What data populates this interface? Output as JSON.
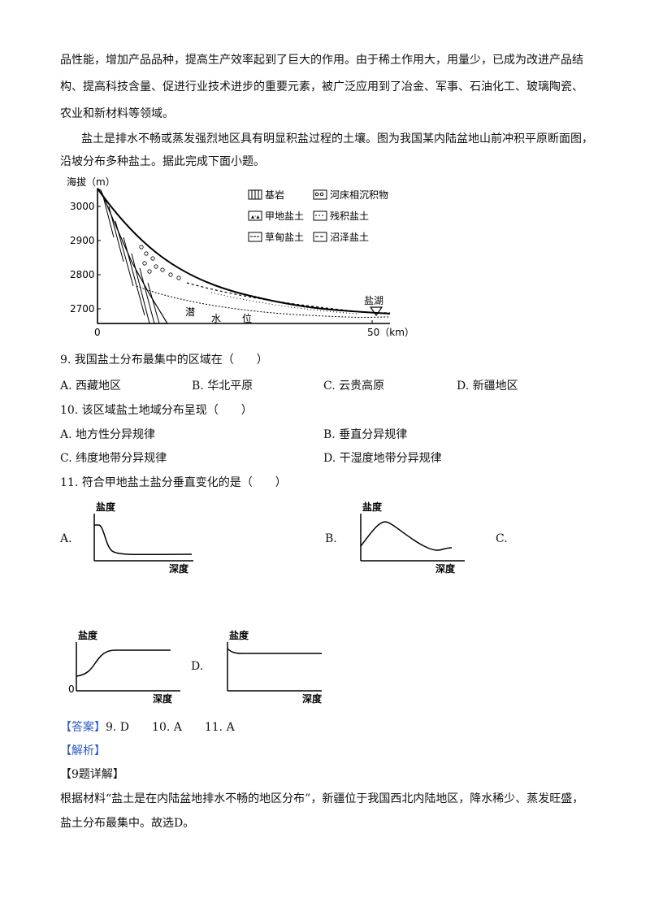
{
  "intro_lines": [
    "品性能，增加产品品种，提高生产效率起到了巨大的作用。由于稀土作用大，用量少，已成为改进产品结",
    "构、提高科技含量、促进行业技术进步的重要元素，被广泛应用到了冶金、军事、石油化工、玻璃陶瓷、",
    "农业和新材料等领域。"
  ],
  "context_lines": [
    "盐土是排水不畅或蒸发强烈地区具有明显积盐过程的土壤。图为我国某内陆盆地山前冲积平原断面图，",
    "沿坡分布多种盐土。据此完成下面小题。"
  ],
  "figure": {
    "y_axis_title": "海拔（m）",
    "y_ticks": [
      "3000",
      "2900",
      "2800",
      "2700"
    ],
    "x_ticks": [
      "0",
      "50（km）"
    ],
    "legend": [
      "基岩",
      "河床相沉积物",
      "甲地盐土",
      "残积盐土",
      "草甸盐土",
      "沼泽盐土"
    ],
    "label_lake": "盐湖",
    "label_water": [
      "潜",
      "水",
      "位"
    ]
  },
  "q9": {
    "stem": "9. 我国盐土分布最集中的区域在（　　）",
    "options": [
      "A. 西藏地区",
      "B. 华北平原",
      "C. 云贵高原",
      "D. 新疆地区"
    ]
  },
  "q10": {
    "stem": "10. 该区域盐土地域分布呈现（　　）",
    "options": [
      "A. 地方性分异规律",
      "B. 垂直分异规律",
      "C. 纬度地带分异规律",
      "D. 干湿度地带分异规律"
    ]
  },
  "q11": {
    "stem": "11. 符合甲地盐土盐分垂直变化的是（　　）",
    "option_letters": [
      "A.",
      "B.",
      "C.",
      "D."
    ],
    "graph_y": "盐度",
    "graph_x": "深度",
    "graph_origin": "0"
  },
  "answer": {
    "tag": "【答案】",
    "text": "9. D　　10. A　　11. A"
  },
  "analysis_tag": "【解析】",
  "detail_title": "【9题详解】",
  "detail_lines": [
    "根据材料“盐土是在内陆盆地排水不畅的地区分布”，新疆位于我国西北内陆地区，降水稀少、蒸发旺盛，",
    "盐土分布最集中。故选D。"
  ]
}
